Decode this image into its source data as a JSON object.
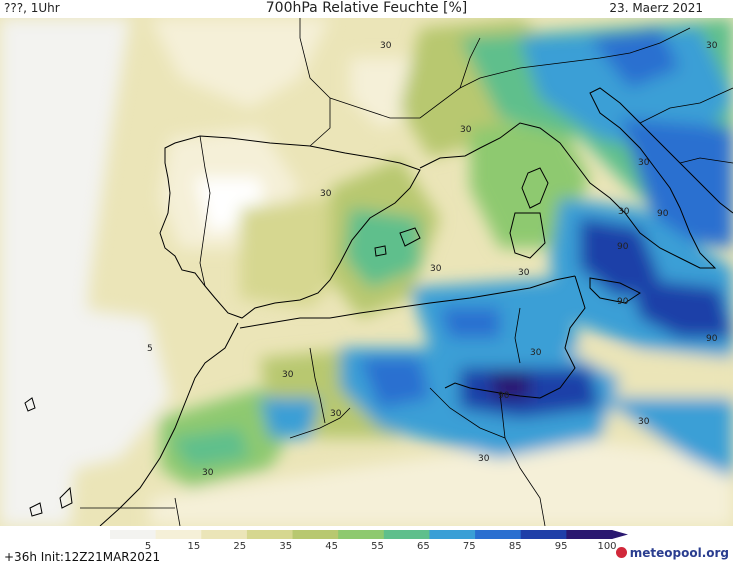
{
  "header": {
    "left_text": "???, 1Uhr",
    "title": "700hPa Relative Feuchte [%]",
    "date": "23. Maerz 2021"
  },
  "footer": {
    "init": "+36h  Init:12Z21MAR2021",
    "brand": "meteopool.org"
  },
  "legend": {
    "ticks": [
      "5",
      "15",
      "25",
      "35",
      "45",
      "55",
      "65",
      "75",
      "85",
      "95",
      "100"
    ],
    "colors": [
      "#f3f3f0",
      "#f5f0d8",
      "#ebe5b8",
      "#d6d790",
      "#b8c870",
      "#8ec96f",
      "#5fbf8c",
      "#3a9fd6",
      "#2a6fd0",
      "#1f3fa8",
      "#2a1870"
    ]
  },
  "map": {
    "contour_labels": [
      {
        "text": "30"
      },
      {
        "text": "30"
      },
      {
        "text": "30"
      },
      {
        "text": "30"
      },
      {
        "text": "30"
      },
      {
        "text": "30"
      },
      {
        "text": "30"
      },
      {
        "text": "30"
      },
      {
        "text": "30"
      },
      {
        "text": "30"
      },
      {
        "text": "30"
      },
      {
        "text": "30"
      },
      {
        "text": "30"
      },
      {
        "text": "30"
      },
      {
        "text": "5"
      },
      {
        "text": "90"
      },
      {
        "text": "90"
      },
      {
        "text": "90"
      },
      {
        "text": "90"
      },
      {
        "text": "90"
      }
    ]
  }
}
